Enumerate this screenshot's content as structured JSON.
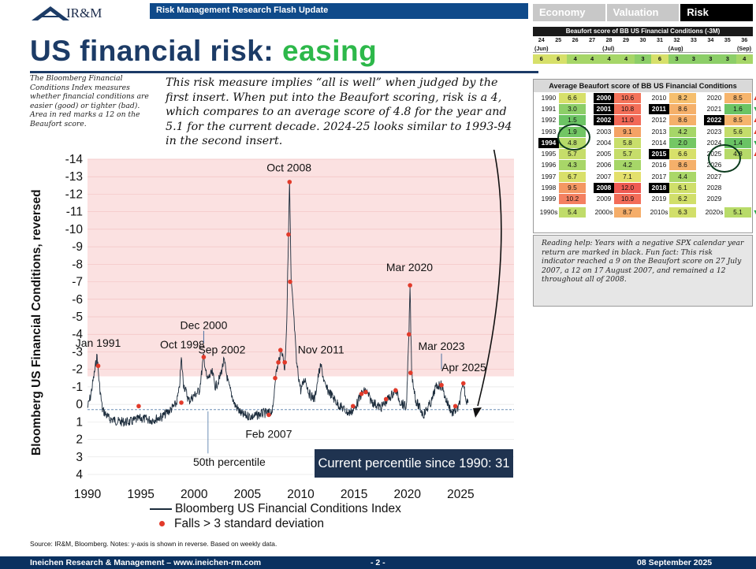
{
  "header": {
    "logo_text": "IR&M",
    "flash_title": "Risk Management Research Flash Update",
    "tabs": [
      {
        "label": "Economy",
        "active": false
      },
      {
        "label": "Valuation",
        "active": false
      },
      {
        "label": "Risk",
        "active": true
      }
    ]
  },
  "title": {
    "main": "US financial risk: ",
    "accent": "easing",
    "accent_color": "#2db84a",
    "main_color": "#1c3b66"
  },
  "side_note": "The Bloomberg Financial Conditions Index measures whether financial conditions are easier (good) or tighter (bad). Area in red marks a 12 on the Beaufort score.",
  "big_note": "This risk measure implies “all is well” when judged by the first insert. When put into the Beaufort scoring, risk is a 4, which compares to an average score of 4.8 for the year and 5.1 for the current decade. 2024-25 looks similar to 1993-94 in the second insert.",
  "beaufort_strip": {
    "title": "Beaufort score of BB US Financial Conditions (-3M)",
    "weeks": [
      "24",
      "25",
      "26",
      "27",
      "28",
      "29",
      "30",
      "31",
      "32",
      "33",
      "34",
      "35",
      "36"
    ],
    "months": [
      "(Jun)",
      "(Jul)",
      "(Aug)",
      "(Sep)"
    ],
    "scores": [
      "6",
      "6",
      "4",
      "4",
      "4",
      "4",
      "3",
      "6",
      "3",
      "3",
      "3",
      "3",
      "4"
    ]
  },
  "avg_table": {
    "title": "Average Beaufort score of BB US Financial Conditions",
    "rows": [
      [
        {
          "y": "1990",
          "v": "6.6",
          "neg": false,
          "c": "#d7e06a"
        },
        {
          "y": "2000",
          "v": "10.6",
          "neg": true,
          "c": "#f4735a"
        },
        {
          "y": "2010",
          "v": "8.2",
          "neg": false,
          "c": "#f6bf6e"
        },
        {
          "y": "2020",
          "v": "8.5",
          "neg": false,
          "c": "#f6b46c",
          "a": "up"
        }
      ],
      [
        {
          "y": "1991",
          "v": "3.0",
          "neg": false,
          "c": "#8cce68"
        },
        {
          "y": "2001",
          "v": "10.8",
          "neg": true,
          "c": "#f36e58"
        },
        {
          "y": "2011",
          "v": "8.6",
          "neg": true,
          "c": "#f5b06a"
        },
        {
          "y": "2021",
          "v": "1.6",
          "neg": false,
          "c": "#6cc464",
          "a": "down"
        }
      ],
      [
        {
          "y": "1992",
          "v": "1.5",
          "neg": false,
          "c": "#6cc464"
        },
        {
          "y": "2002",
          "v": "11.0",
          "neg": true,
          "c": "#f26856"
        },
        {
          "y": "2012",
          "v": "8.6",
          "neg": false,
          "c": "#f5b06a"
        },
        {
          "y": "2022",
          "v": "8.5",
          "neg": true,
          "c": "#f6b46c",
          "a": "up"
        }
      ],
      [
        {
          "y": "1993",
          "v": "1.9",
          "neg": false,
          "c": "#72c664"
        },
        {
          "y": "2003",
          "v": "9.1",
          "neg": false,
          "c": "#f5a265"
        },
        {
          "y": "2013",
          "v": "4.2",
          "neg": false,
          "c": "#a6d668"
        },
        {
          "y": "2023",
          "v": "5.6",
          "neg": false,
          "c": "#c4dd6a",
          "a": "up"
        }
      ],
      [
        {
          "y": "1994",
          "v": "4.8",
          "neg": true,
          "c": "#b6da69"
        },
        {
          "y": "2004",
          "v": "5.8",
          "neg": false,
          "c": "#c8de6a"
        },
        {
          "y": "2014",
          "v": "2.0",
          "neg": false,
          "c": "#74c764"
        },
        {
          "y": "2024",
          "v": "1.4",
          "neg": false,
          "c": "#6ac364",
          "a": "down"
        }
      ],
      [
        {
          "y": "1995",
          "v": "5.7",
          "neg": false,
          "c": "#c6dd6a"
        },
        {
          "y": "2005",
          "v": "5.7",
          "neg": false,
          "c": "#c6dd6a"
        },
        {
          "y": "2015",
          "v": "6.6",
          "neg": true,
          "c": "#d7e06a"
        },
        {
          "y": "2025",
          "v": "4.8",
          "neg": false,
          "c": "#b6da69",
          "a": "up"
        }
      ],
      [
        {
          "y": "1996",
          "v": "4.3",
          "neg": false,
          "c": "#a8d668"
        },
        {
          "y": "2006",
          "v": "4.2",
          "neg": false,
          "c": "#a6d668"
        },
        {
          "y": "2016",
          "v": "8.6",
          "neg": false,
          "c": "#f5b06a"
        },
        {
          "y": "2026",
          "v": "",
          "neg": false,
          "c": "#ffffff"
        }
      ],
      [
        {
          "y": "1997",
          "v": "6.7",
          "neg": false,
          "c": "#d9e06a"
        },
        {
          "y": "2007",
          "v": "7.1",
          "neg": false,
          "c": "#e4e06c"
        },
        {
          "y": "2017",
          "v": "4.4",
          "neg": false,
          "c": "#aad768"
        },
        {
          "y": "2027",
          "v": "",
          "neg": false,
          "c": "#ffffff"
        }
      ],
      [
        {
          "y": "1998",
          "v": "9.5",
          "neg": false,
          "c": "#f49863"
        },
        {
          "y": "2008",
          "v": "12.0",
          "neg": true,
          "c": "#ef5a52"
        },
        {
          "y": "2018",
          "v": "6.1",
          "neg": true,
          "c": "#cfdf6a"
        },
        {
          "y": "2028",
          "v": "",
          "neg": false,
          "c": "#ffffff"
        }
      ],
      [
        {
          "y": "1999",
          "v": "10.2",
          "neg": false,
          "c": "#f48060"
        },
        {
          "y": "2009",
          "v": "10.9",
          "neg": false,
          "c": "#f36c58"
        },
        {
          "y": "2019",
          "v": "6.2",
          "neg": false,
          "c": "#d1df6a"
        },
        {
          "y": "2029",
          "v": "",
          "neg": false,
          "c": "#ffffff"
        }
      ]
    ],
    "decades": [
      {
        "y": "1990s",
        "v": "5.4",
        "c": "#c0dc6a"
      },
      {
        "y": "2000s",
        "v": "8.7",
        "c": "#f5ad69"
      },
      {
        "y": "2010s",
        "v": "6.3",
        "c": "#d2df6a"
      },
      {
        "y": "2020s",
        "v": "5.1",
        "c": "#b8db69",
        "a": "down"
      }
    ]
  },
  "reading_help": "Reading help: Years with a negative SPX calendar year return are marked in black. Fun fact: This risk indicator reached a 9 on the Beaufort score on 27 July 2007, a 12 on 17 August 2007, and remained a 12 throughout all of 2008.",
  "chart_data": {
    "type": "line",
    "ylabel": "Bloomberg US Financial Conditions, reversed",
    "y_reversed": true,
    "ylim": [
      -14,
      4
    ],
    "y_ticks": [
      "-14",
      "-13",
      "-12",
      "-11",
      "-10",
      "-9",
      "-8",
      "-7",
      "-6",
      "-5",
      "-4",
      "-3",
      "-2",
      "-1",
      "0",
      "1",
      "2",
      "3",
      "4"
    ],
    "xlim": [
      1990,
      2030
    ],
    "x_ticks": [
      "1990",
      "1995",
      "2000",
      "2005",
      "2010",
      "2015",
      "2020",
      "2025"
    ],
    "red_zone_below": -1.6,
    "percentile_50": 0.3,
    "series": [
      {
        "name": "Bloomberg US Financial Conditions Index",
        "points": [
          [
            1990.0,
            0.2
          ],
          [
            1990.3,
            -0.5
          ],
          [
            1990.7,
            -2.0
          ],
          [
            1990.9,
            -2.8
          ],
          [
            1991.1,
            -1.2
          ],
          [
            1991.4,
            0.3
          ],
          [
            1992.0,
            0.8
          ],
          [
            1993.0,
            1.0
          ],
          [
            1994.0,
            1.0
          ],
          [
            1995.0,
            0.8
          ],
          [
            1996.0,
            0.9
          ],
          [
            1997.0,
            0.7
          ],
          [
            1997.8,
            0.3
          ],
          [
            1998.3,
            0.0
          ],
          [
            1998.6,
            -0.8
          ],
          [
            1998.8,
            -2.6
          ],
          [
            1999.0,
            -1.2
          ],
          [
            1999.5,
            -0.2
          ],
          [
            2000.0,
            -0.5
          ],
          [
            2000.5,
            -0.8
          ],
          [
            2000.9,
            -2.8
          ],
          [
            2001.2,
            -1.4
          ],
          [
            2001.7,
            -1.8
          ],
          [
            2002.0,
            -1.0
          ],
          [
            2002.4,
            -1.5
          ],
          [
            2002.8,
            -2.5
          ],
          [
            2003.2,
            -1.2
          ],
          [
            2003.8,
            0.0
          ],
          [
            2004.5,
            0.6
          ],
          [
            2005.5,
            0.7
          ],
          [
            2006.5,
            0.5
          ],
          [
            2007.0,
            0.5
          ],
          [
            2007.4,
            0.3
          ],
          [
            2007.6,
            -1.5
          ],
          [
            2007.9,
            -2.4
          ],
          [
            2008.2,
            -3.2
          ],
          [
            2008.5,
            -2.0
          ],
          [
            2008.7,
            -5.0
          ],
          [
            2008.85,
            -9.7
          ],
          [
            2008.95,
            -12.7
          ],
          [
            2009.1,
            -7.0
          ],
          [
            2009.3,
            -5.5
          ],
          [
            2009.6,
            -2.4
          ],
          [
            2010.0,
            -0.8
          ],
          [
            2010.4,
            -1.5
          ],
          [
            2010.8,
            -0.6
          ],
          [
            2011.3,
            -0.3
          ],
          [
            2011.7,
            -1.8
          ],
          [
            2011.9,
            -2.2
          ],
          [
            2012.3,
            -1.0
          ],
          [
            2012.8,
            -0.6
          ],
          [
            2013.5,
            0.0
          ],
          [
            2014.5,
            0.5
          ],
          [
            2015.0,
            0.3
          ],
          [
            2015.7,
            -0.6
          ],
          [
            2016.1,
            -0.8
          ],
          [
            2016.6,
            -0.2
          ],
          [
            2017.5,
            0.2
          ],
          [
            2018.2,
            -0.3
          ],
          [
            2018.9,
            -0.8
          ],
          [
            2019.3,
            -0.2
          ],
          [
            2019.9,
            0.2
          ],
          [
            2020.15,
            -4.0
          ],
          [
            2020.25,
            -6.8
          ],
          [
            2020.4,
            -1.8
          ],
          [
            2020.8,
            -0.2
          ],
          [
            2021.5,
            0.6
          ],
          [
            2022.3,
            -0.2
          ],
          [
            2022.6,
            -0.9
          ],
          [
            2022.9,
            -1.1
          ],
          [
            2023.2,
            -1.1
          ],
          [
            2023.6,
            -0.3
          ],
          [
            2024.2,
            0.5
          ],
          [
            2024.8,
            0.2
          ],
          [
            2025.25,
            -1.2
          ],
          [
            2025.5,
            -0.3
          ],
          [
            2025.7,
            -0.1
          ]
        ]
      },
      {
        "name": "Falls > 3 standard deviation",
        "points": [
          [
            1991.0,
            -2.2
          ],
          [
            1994.8,
            0.1
          ],
          [
            1998.8,
            -0.1
          ],
          [
            2000.9,
            -2.7
          ],
          [
            2007.0,
            0.6
          ],
          [
            2007.6,
            -1.5
          ],
          [
            2007.9,
            -2.4
          ],
          [
            2008.1,
            -3.1
          ],
          [
            2008.5,
            -2.4
          ],
          [
            2008.85,
            -9.7
          ],
          [
            2008.95,
            -12.7
          ],
          [
            2009.0,
            -7.0
          ],
          [
            2014.9,
            0.1
          ],
          [
            2015.7,
            -0.6
          ],
          [
            2016.1,
            -0.7
          ],
          [
            2018.0,
            -0.3
          ],
          [
            2018.9,
            -0.8
          ],
          [
            2020.15,
            -4.0
          ],
          [
            2020.25,
            -6.8
          ],
          [
            2020.3,
            -1.8
          ],
          [
            2023.2,
            -1.1
          ],
          [
            2024.5,
            0.1
          ],
          [
            2025.25,
            -1.2
          ]
        ]
      }
    ],
    "annotations": [
      {
        "text": "Jan 1991",
        "x": 1991.0,
        "y": -3.3
      },
      {
        "text": "Oct 1998",
        "x": 1998.9,
        "y": -3.2
      },
      {
        "text": "Dec 2000",
        "x": 2000.9,
        "y": -4.3
      },
      {
        "text": "Sep 2002",
        "x": 2002.6,
        "y": -2.9
      },
      {
        "text": "Oct 2008",
        "x": 2008.9,
        "y": -13.3
      },
      {
        "text": "Feb 2007",
        "x": 2007.0,
        "y": 1.9
      },
      {
        "text": "Nov 2011",
        "x": 2011.9,
        "y": -2.9
      },
      {
        "text": "Mar 2020",
        "x": 2020.2,
        "y": -7.6
      },
      {
        "text": "Mar 2023",
        "x": 2023.2,
        "y": -3.1
      },
      {
        "text": "Apr 2025",
        "x": 2025.3,
        "y": -1.9
      }
    ],
    "percentile_label": "50th percentile"
  },
  "percentile_box": "Current percentile since 1990: 31",
  "legend": {
    "line": "Bloomberg US Financial Conditions Index",
    "dots": "Falls > 3 standard deviation"
  },
  "source": "Source: IR&M, Bloomberg. Notes: y-axis is shown in reverse. Based on weekly data.",
  "footer": {
    "left": "Ineichen Research & Management – www.ineichen-rm.com",
    "center": "- 2 -",
    "right": "08 September 2025"
  }
}
